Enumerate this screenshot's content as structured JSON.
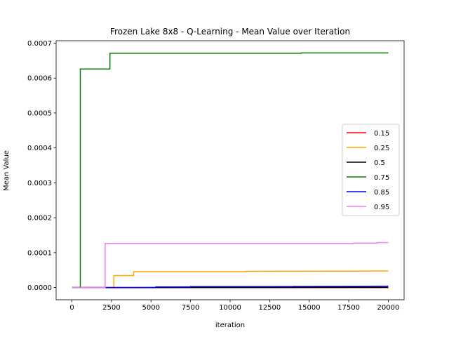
{
  "chart_data": {
    "type": "line",
    "title": "Frozen Lake 8x8 - Q-Learning - Mean Value over Iteration",
    "xlabel": "iteration",
    "ylabel": "Mean Value",
    "xlim": [
      -1000,
      21000
    ],
    "ylim": [
      -3.5e-05,
      0.000707
    ],
    "x_ticks": [
      0,
      2500,
      5000,
      7500,
      10000,
      12500,
      15000,
      17500,
      20000
    ],
    "x_tick_labels": [
      "0",
      "2500",
      "5000",
      "7500",
      "10000",
      "12500",
      "15000",
      "17500",
      "20000"
    ],
    "y_ticks": [
      0.0,
      0.0001,
      0.0002,
      0.0003,
      0.0004,
      0.0005,
      0.0006,
      0.0007
    ],
    "y_tick_labels": [
      "0.0000",
      "0.0001",
      "0.0002",
      "0.0003",
      "0.0004",
      "0.0005",
      "0.0006",
      "0.0007"
    ],
    "grid": false,
    "legend_position": "right",
    "series": [
      {
        "name": "0.15",
        "color": "#ff0000",
        "x": [
          0,
          20000
        ],
        "y": [
          0.0,
          0.0
        ]
      },
      {
        "name": "0.25",
        "color": "#ffa500",
        "x": [
          0,
          2650,
          2650,
          3900,
          3900,
          11000,
          11000,
          20000
        ],
        "y": [
          0.0,
          0.0,
          3.45e-05,
          3.45e-05,
          4.55e-05,
          4.55e-05,
          4.65e-05,
          4.75e-05
        ]
      },
      {
        "name": "0.5",
        "color": "#000000",
        "x": [
          0,
          20000
        ],
        "y": [
          0.0,
          5e-07
        ]
      },
      {
        "name": "0.75",
        "color": "#008000",
        "x": [
          0,
          530,
          530,
          2400,
          2400,
          14500,
          14500,
          20000
        ],
        "y": [
          0.0,
          0.0,
          0.000626,
          0.000626,
          0.000671,
          0.000671,
          0.000672,
          0.000672
        ]
      },
      {
        "name": "0.85",
        "color": "#0000ff",
        "x": [
          0,
          5300,
          5300,
          7500,
          7500,
          14000,
          14000,
          20000
        ],
        "y": [
          0.0,
          0.0,
          2e-06,
          2e-06,
          3e-06,
          3e-06,
          3.5e-06,
          4e-06
        ]
      },
      {
        "name": "0.95",
        "color": "#ee82ee",
        "x": [
          0,
          2100,
          2100,
          17800,
          17800,
          19300,
          19300,
          20000
        ],
        "y": [
          0.0,
          0.0,
          0.0001265,
          0.0001265,
          0.0001275,
          0.0001275,
          0.000129,
          0.000129
        ]
      }
    ]
  }
}
